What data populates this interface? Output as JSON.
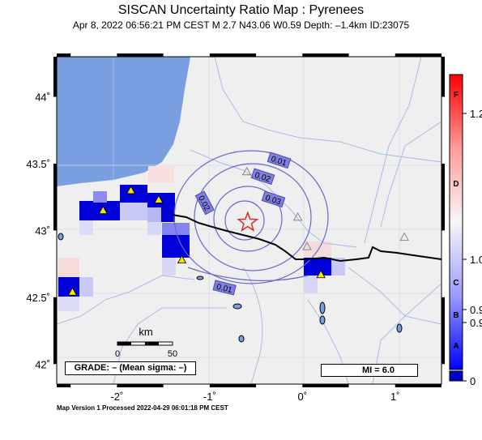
{
  "header": {
    "title": "SISCAN Uncertainty Ratio Map : Pyrenees",
    "subtitle": "Apr  8, 2022 06:56:21 PM CEST   M 2.7   N43.06 W0.59   Depth: –1.4km   ID:23075"
  },
  "map": {
    "lon_range": [
      -2.65,
      1.5
    ],
    "lat_range": [
      41.85,
      44.3
    ],
    "lon_ticks": [
      {
        "v": -2,
        "label": "-2˚"
      },
      {
        "v": -1,
        "label": "-1˚"
      },
      {
        "v": 0,
        "label": "0˚"
      },
      {
        "v": 1,
        "label": "1˚"
      }
    ],
    "lat_ticks": [
      {
        "v": 44,
        "label": "44˚"
      },
      {
        "v": 43.5,
        "label": "43.5˚"
      },
      {
        "v": 43,
        "label": "43˚"
      },
      {
        "v": 42.5,
        "label": "42.5˚"
      },
      {
        "v": 42,
        "label": "42˚"
      }
    ],
    "epicenter": {
      "lon": -0.59,
      "lat": 43.06,
      "icon": "star-icon",
      "color": "#d42a2a"
    },
    "contours": [
      {
        "label": "0.01"
      },
      {
        "label": "0.02"
      },
      {
        "label": "0.02"
      },
      {
        "label": "0.03"
      },
      {
        "label": "0.01"
      }
    ],
    "stations_used": [
      {
        "lon": -2.15,
        "lat": 43.15
      },
      {
        "lon": -1.85,
        "lat": 43.3
      },
      {
        "lon": -1.55,
        "lat": 43.23
      },
      {
        "lon": -1.3,
        "lat": 42.78
      },
      {
        "lon": 0.2,
        "lat": 42.67
      },
      {
        "lon": -2.48,
        "lat": 42.54
      }
    ],
    "stations_unused": [
      {
        "lon": -0.6,
        "lat": 43.44
      },
      {
        "lon": 0.05,
        "lat": 42.88
      },
      {
        "lon": -0.05,
        "lat": 43.1
      },
      {
        "lon": 1.1,
        "lat": 42.95
      }
    ],
    "scale_bar": {
      "unit": "km",
      "ticks": [
        "0",
        "50"
      ]
    },
    "grade_text": "GRADE: – (Mean sigma: –)",
    "mi_label": "MI = 6.0",
    "colors": {
      "sea": "#7a9fe0",
      "land": "#efefef",
      "station": "#f3e600",
      "cell_high": "#0000d8",
      "border": "#000000",
      "rivers": "#9fb3e0"
    }
  },
  "colorbar": {
    "grades": [
      "F",
      "D",
      "C",
      "B",
      "A"
    ],
    "values": [
      "1.2",
      "1.0",
      "0.9",
      "0.9",
      "0"
    ]
  },
  "footer": {
    "text": "Map Version 1 Processed 2022-04-29 06:01:18 PM CEST"
  }
}
